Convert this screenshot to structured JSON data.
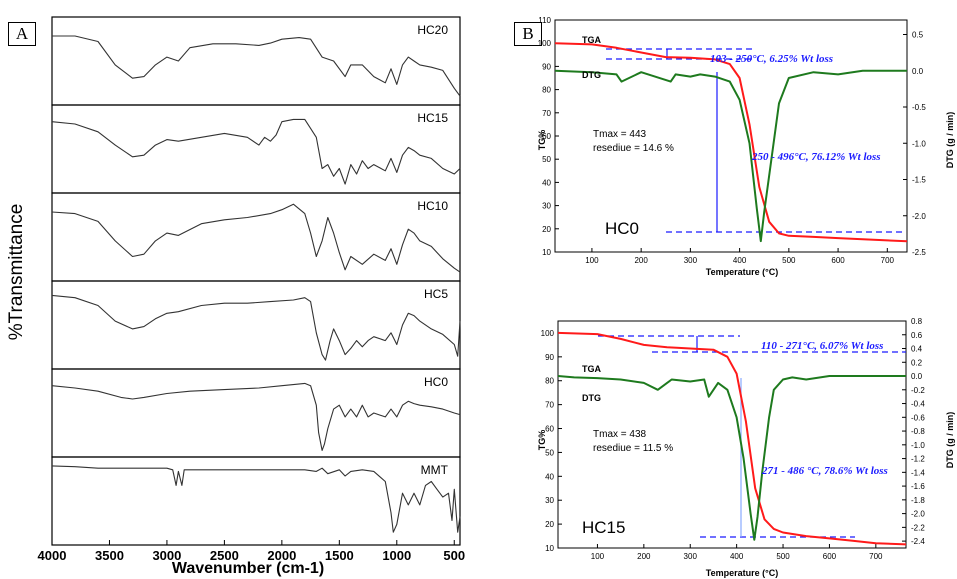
{
  "panels": {
    "a_label": "A",
    "b_label": "B"
  },
  "ftir": {
    "ylabel": "%Transmittance",
    "xlabel": "Wavenumber (cm-1)",
    "xticks": [
      "4000",
      "3500",
      "3000",
      "2500",
      "2000",
      "1500",
      "1000",
      "500"
    ]
  },
  "tga_top": {
    "sample": "HC0",
    "tga_tag": "TGA",
    "dtg_tag": "DTG",
    "tmax": "Tmax = 443",
    "residue": "resediue = 14.6 %",
    "ann1": "103 - 250°C, 6.25% Wt loss",
    "ann2": "250 - 496°C, 76.12% Wt loss",
    "ylabel_left": "TG%",
    "ylabel_right": "DTG (g / min)",
    "xlabel": "Temperature (°C)"
  },
  "tga_bot": {
    "sample": "HC15",
    "tga_tag": "TGA",
    "dtg_tag": "DTG",
    "tmax": "Tmax = 438",
    "residue": "resediue = 11.5 %",
    "ann1": "110 - 271°C, 6.07% Wt loss",
    "ann2": "271 - 486 °C, 78.6% Wt loss",
    "ylabel_left": "TG%",
    "ylabel_right": "DTG (g / min)",
    "xlabel": "Temperature (°C)"
  },
  "colors": {
    "tga": "#ff1a1a",
    "dtg": "#1e7a1e",
    "annotation": "#1a1aff",
    "ftir": "#333333"
  },
  "chart_data": [
    {
      "type": "line",
      "title": "",
      "xlabel": "Wavenumber (cm-1)",
      "ylabel": "%Transmittance",
      "xlim": [
        4000,
        450
      ],
      "x_reversed": true,
      "series_y_units": "relative transmittance (0 = top of strip, 1 = bottom)",
      "series": [
        {
          "name": "HC20",
          "x": [
            4000,
            3800,
            3600,
            3450,
            3300,
            3200,
            3100,
            3000,
            2900,
            2800,
            2600,
            2400,
            2200,
            2100,
            2000,
            1850,
            1750,
            1650,
            1550,
            1450,
            1400,
            1300,
            1200,
            1100,
            1050,
            1000,
            950,
            900,
            850,
            800,
            700,
            600,
            500,
            450
          ],
          "y": [
            0.18,
            0.18,
            0.25,
            0.55,
            0.72,
            0.7,
            0.55,
            0.45,
            0.5,
            0.33,
            0.28,
            0.28,
            0.3,
            0.27,
            0.22,
            0.2,
            0.22,
            0.45,
            0.5,
            0.7,
            0.55,
            0.55,
            0.7,
            0.78,
            0.6,
            0.8,
            0.55,
            0.45,
            0.5,
            0.55,
            0.58,
            0.62,
            0.85,
            0.95
          ]
        },
        {
          "name": "HC15",
          "x": [
            4000,
            3800,
            3600,
            3450,
            3300,
            3200,
            3100,
            3000,
            2900,
            2700,
            2500,
            2300,
            2200,
            2150,
            2100,
            2050,
            2000,
            1900,
            1800,
            1700,
            1650,
            1600,
            1550,
            1500,
            1450,
            1400,
            1350,
            1300,
            1250,
            1200,
            1100,
            1050,
            1000,
            950,
            900,
            850,
            800,
            700,
            600,
            500,
            450
          ],
          "y": [
            0.15,
            0.18,
            0.28,
            0.45,
            0.6,
            0.58,
            0.45,
            0.38,
            0.4,
            0.35,
            0.3,
            0.35,
            0.45,
            0.35,
            0.4,
            0.32,
            0.15,
            0.12,
            0.12,
            0.35,
            0.75,
            0.7,
            0.85,
            0.75,
            0.95,
            0.7,
            0.82,
            0.65,
            0.75,
            0.7,
            0.78,
            0.62,
            0.8,
            0.58,
            0.48,
            0.52,
            0.58,
            0.62,
            0.75,
            0.82,
            0.75
          ]
        },
        {
          "name": "HC10",
          "x": [
            4000,
            3800,
            3600,
            3450,
            3300,
            3200,
            3100,
            3000,
            2900,
            2700,
            2500,
            2300,
            2100,
            2000,
            1900,
            1800,
            1750,
            1700,
            1650,
            1600,
            1550,
            1500,
            1450,
            1400,
            1300,
            1200,
            1100,
            1050,
            1000,
            950,
            900,
            850,
            800,
            700,
            600,
            500,
            450
          ],
          "y": [
            0.18,
            0.2,
            0.3,
            0.55,
            0.75,
            0.72,
            0.55,
            0.45,
            0.48,
            0.33,
            0.28,
            0.25,
            0.2,
            0.15,
            0.08,
            0.2,
            0.45,
            0.75,
            0.55,
            0.25,
            0.45,
            0.7,
            0.92,
            0.75,
            0.85,
            0.72,
            0.8,
            0.65,
            0.85,
            0.6,
            0.4,
            0.45,
            0.55,
            0.62,
            0.78,
            0.9,
            0.95
          ]
        },
        {
          "name": "HC5",
          "x": [
            4000,
            3800,
            3600,
            3450,
            3300,
            3200,
            3100,
            3000,
            2900,
            2700,
            2500,
            2300,
            2100,
            1900,
            1800,
            1750,
            1700,
            1650,
            1620,
            1580,
            1550,
            1500,
            1450,
            1400,
            1350,
            1300,
            1250,
            1200,
            1100,
            1050,
            1000,
            950,
            900,
            850,
            800,
            700,
            600,
            500,
            470,
            450
          ],
          "y": [
            0.12,
            0.15,
            0.25,
            0.45,
            0.55,
            0.52,
            0.42,
            0.35,
            0.33,
            0.25,
            0.22,
            0.22,
            0.2,
            0.18,
            0.15,
            0.2,
            0.6,
            0.88,
            0.95,
            0.7,
            0.55,
            0.7,
            0.88,
            0.8,
            0.7,
            0.78,
            0.7,
            0.65,
            0.7,
            0.6,
            0.75,
            0.5,
            0.35,
            0.38,
            0.45,
            0.55,
            0.62,
            0.75,
            0.9,
            0.45
          ]
        },
        {
          "name": "HC0",
          "x": [
            4000,
            3800,
            3600,
            3400,
            3300,
            3200,
            3000,
            2800,
            2500,
            2200,
            2000,
            1800,
            1750,
            1700,
            1680,
            1650,
            1630,
            1600,
            1550,
            1500,
            1450,
            1400,
            1350,
            1300,
            1250,
            1200,
            1100,
            1050,
            1000,
            950,
            900,
            850,
            800,
            700,
            600,
            500,
            450
          ],
          "y": [
            0.15,
            0.18,
            0.22,
            0.3,
            0.32,
            0.3,
            0.25,
            0.22,
            0.2,
            0.18,
            0.15,
            0.12,
            0.15,
            0.4,
            0.75,
            0.98,
            0.9,
            0.7,
            0.45,
            0.4,
            0.55,
            0.45,
            0.55,
            0.4,
            0.55,
            0.5,
            0.55,
            0.45,
            0.55,
            0.4,
            0.35,
            0.38,
            0.4,
            0.42,
            0.45,
            0.5,
            0.52
          ]
        },
        {
          "name": "MMT",
          "x": [
            4000,
            3800,
            3600,
            3400,
            3200,
            3000,
            2950,
            2920,
            2900,
            2870,
            2850,
            2800,
            2500,
            2200,
            2000,
            1800,
            1700,
            1650,
            1600,
            1500,
            1450,
            1400,
            1300,
            1200,
            1100,
            1050,
            1030,
            1000,
            950,
            900,
            850,
            800,
            750,
            700,
            650,
            600,
            550,
            520,
            500,
            470,
            450
          ],
          "y": [
            0.05,
            0.06,
            0.08,
            0.08,
            0.08,
            0.08,
            0.1,
            0.3,
            0.12,
            0.3,
            0.1,
            0.1,
            0.1,
            0.1,
            0.1,
            0.1,
            0.12,
            0.08,
            0.15,
            0.1,
            0.18,
            0.12,
            0.1,
            0.12,
            0.25,
            0.65,
            0.9,
            0.8,
            0.4,
            0.55,
            0.4,
            0.55,
            0.3,
            0.25,
            0.35,
            0.45,
            0.4,
            0.75,
            0.35,
            0.9,
            0.7
          ]
        }
      ]
    },
    {
      "type": "line",
      "title": "",
      "xlabel": "Temperature (°C)",
      "ylabel": "TG%",
      "y2label": "DTG (g / min)",
      "xlim": [
        25,
        740
      ],
      "ylim": [
        10,
        110
      ],
      "y2lim": [
        -2.5,
        0.7
      ],
      "xticks": [
        100,
        200,
        300,
        400,
        500,
        600,
        700
      ],
      "yticks": [
        10,
        20,
        30,
        40,
        50,
        60,
        70,
        80,
        90,
        100,
        110
      ],
      "y2ticks": [
        0.5,
        0.0,
        -0.5,
        -1.0,
        -1.5,
        -2.0,
        -2.5
      ],
      "series": [
        {
          "name": "TGA",
          "axis": "left",
          "x": [
            25,
            100,
            150,
            200,
            250,
            300,
            350,
            380,
            400,
            420,
            440,
            460,
            480,
            500,
            550,
            600,
            650,
            700,
            740
          ],
          "y": [
            100,
            99.5,
            98,
            96,
            94,
            93.7,
            93,
            91,
            85,
            65,
            38,
            23,
            18,
            17,
            16.5,
            16,
            15.5,
            15,
            14.6
          ]
        },
        {
          "name": "DTG",
          "axis": "right",
          "x": [
            25,
            100,
            150,
            160,
            200,
            260,
            270,
            300,
            320,
            350,
            380,
            400,
            420,
            435,
            443,
            450,
            465,
            480,
            500,
            550,
            600,
            650,
            700,
            740
          ],
          "y": [
            0.0,
            -0.02,
            -0.05,
            -0.15,
            -0.02,
            -0.15,
            -0.05,
            -0.08,
            -0.05,
            -0.08,
            -0.15,
            -0.4,
            -1.0,
            -1.9,
            -2.35,
            -1.95,
            -1.2,
            -0.45,
            -0.1,
            -0.02,
            -0.05,
            0.0,
            0.0,
            0.0
          ]
        }
      ]
    },
    {
      "type": "line",
      "title": "",
      "xlabel": "Temperature (°C)",
      "ylabel": "TG%",
      "y2label": "DTG (g / min)",
      "xlim": [
        15,
        765
      ],
      "ylim": [
        10,
        105
      ],
      "y2lim": [
        -2.5,
        0.8
      ],
      "xticks": [
        100,
        200,
        300,
        400,
        500,
        600,
        700
      ],
      "yticks": [
        10,
        20,
        30,
        40,
        50,
        60,
        70,
        80,
        90,
        100
      ],
      "y2ticks": [
        0.8,
        0.6,
        0.4,
        0.2,
        0.0,
        -0.2,
        -0.4,
        -0.6,
        -0.8,
        -1.0,
        -1.2,
        -1.4,
        -1.6,
        -1.8,
        -2.0,
        -2.2,
        -2.4
      ],
      "series": [
        {
          "name": "TGA",
          "axis": "left",
          "x": [
            15,
            100,
            150,
            200,
            250,
            271,
            300,
            350,
            380,
            400,
            420,
            440,
            460,
            480,
            500,
            550,
            600,
            650,
            700,
            765
          ],
          "y": [
            100,
            99.5,
            97.5,
            95,
            94,
            93.8,
            93.5,
            93,
            90,
            83,
            63,
            35,
            22,
            18,
            16.5,
            15,
            14,
            13,
            12,
            11.5
          ]
        },
        {
          "name": "DTG",
          "axis": "right",
          "x": [
            15,
            50,
            100,
            150,
            200,
            230,
            260,
            300,
            330,
            340,
            360,
            380,
            400,
            415,
            430,
            438,
            445,
            455,
            470,
            480,
            500,
            520,
            550,
            600,
            650,
            700,
            765
          ],
          "y": [
            0.0,
            -0.02,
            -0.03,
            -0.05,
            -0.1,
            -0.2,
            -0.05,
            -0.08,
            -0.05,
            -0.3,
            -0.1,
            -0.2,
            -0.6,
            -1.2,
            -2.0,
            -2.38,
            -2.05,
            -1.4,
            -0.6,
            -0.2,
            -0.05,
            -0.02,
            -0.05,
            0.0,
            0.0,
            0.0,
            0.0
          ]
        }
      ]
    }
  ]
}
